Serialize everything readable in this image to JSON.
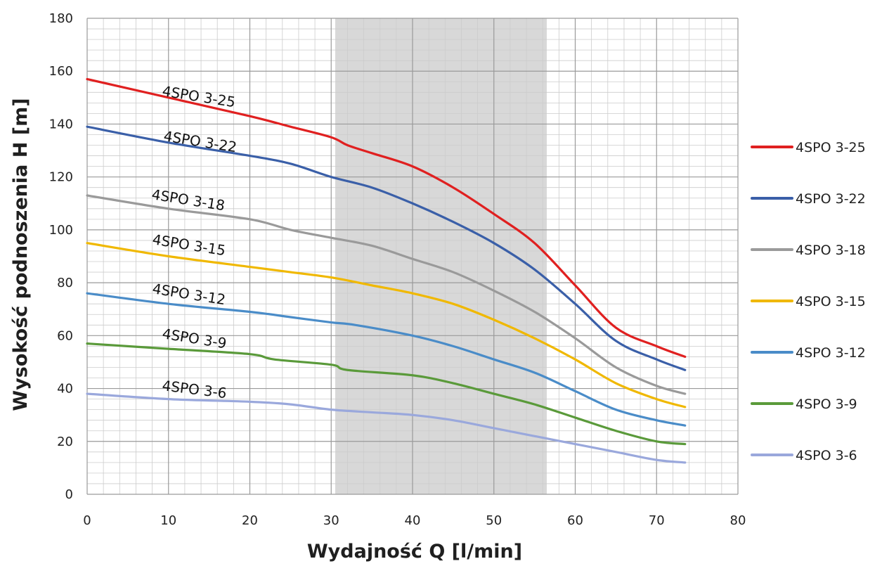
{
  "chart_data": {
    "type": "line",
    "title": "",
    "xlabel": "Wydajność Q [l/min]",
    "ylabel": "Wysokość podnoszenia H [m]",
    "xlim": [
      0,
      80
    ],
    "ylim": [
      0,
      180
    ],
    "x_ticks": [
      0,
      10,
      20,
      30,
      40,
      50,
      60,
      70,
      80
    ],
    "y_ticks": [
      0,
      20,
      40,
      60,
      80,
      100,
      120,
      140,
      160,
      180
    ],
    "x_tick_labels": [
      "0",
      "10",
      "20",
      "30",
      "40",
      "50",
      "60",
      "70",
      "80"
    ],
    "y_tick_labels": [
      "0",
      "20",
      "40",
      "60",
      "80",
      "100",
      "120",
      "140",
      "160",
      "180"
    ],
    "grid": true,
    "highlight_range_x": [
      30.5,
      56.5
    ],
    "legend_position": "right",
    "series": [
      {
        "name": "4SPO 3-25",
        "color": "#e02020",
        "x": [
          0,
          10,
          20,
          25,
          30,
          32,
          35,
          40,
          45,
          50,
          55,
          60,
          65,
          70,
          73.5
        ],
        "y": [
          157,
          150,
          143,
          139,
          135,
          132,
          129,
          124,
          116,
          106,
          95,
          79,
          63,
          56,
          52
        ]
      },
      {
        "name": "4SPO 3-22",
        "color": "#3a5fa8",
        "x": [
          0,
          10,
          20,
          25,
          30,
          35,
          40,
          45,
          50,
          55,
          60,
          65,
          70,
          73.5
        ],
        "y": [
          139,
          133,
          128,
          125,
          120,
          116,
          110,
          103,
          95,
          85,
          72,
          58,
          51,
          47
        ]
      },
      {
        "name": "4SPO 3-18",
        "color": "#9a9a9a",
        "x": [
          0,
          10,
          20,
          25,
          30,
          35,
          40,
          45,
          50,
          55,
          60,
          65,
          70,
          73.5
        ],
        "y": [
          113,
          108,
          104,
          100,
          97,
          94,
          89,
          84,
          77,
          69,
          59,
          48,
          41,
          38
        ]
      },
      {
        "name": "4SPO 3-15",
        "color": "#f0b800",
        "x": [
          0,
          10,
          20,
          25,
          30,
          35,
          40,
          45,
          50,
          55,
          60,
          65,
          70,
          73.5
        ],
        "y": [
          95,
          90,
          86,
          84,
          82,
          79,
          76,
          72,
          66,
          59,
          51,
          42,
          36,
          33
        ]
      },
      {
        "name": "4SPO 3-12",
        "color": "#4a8cc8",
        "x": [
          0,
          10,
          20,
          25,
          30,
          33,
          40,
          45,
          50,
          55,
          60,
          65,
          70,
          73.5
        ],
        "y": [
          76,
          72,
          69,
          67,
          65,
          64,
          60,
          56,
          51,
          46,
          39,
          32,
          28,
          26
        ]
      },
      {
        "name": "4SPO 3-9",
        "color": "#5a9a3a",
        "x": [
          0,
          10,
          20,
          23,
          30,
          32,
          40,
          45,
          50,
          55,
          60,
          65,
          70,
          73.5
        ],
        "y": [
          57,
          55,
          53,
          51,
          49,
          47,
          45,
          42,
          38,
          34,
          29,
          24,
          20,
          19
        ]
      },
      {
        "name": "4SPO 3-6",
        "color": "#9aa8dc",
        "x": [
          0,
          10,
          20,
          25,
          30,
          35,
          40,
          45,
          50,
          55,
          60,
          65,
          70,
          73.5
        ],
        "y": [
          38,
          36,
          35,
          34,
          32,
          31,
          30,
          28,
          25,
          22,
          19,
          16,
          13,
          12
        ]
      }
    ],
    "curve_labels": [
      {
        "text": "4SPO 3-25"
      },
      {
        "text": "4SPO 3-22"
      },
      {
        "text": "4SPO 3-18"
      },
      {
        "text": "4SPO 3-15"
      },
      {
        "text": "4SPO 3-12"
      },
      {
        "text": "4SPO 3-9"
      },
      {
        "text": "4SPO 3-6"
      }
    ]
  }
}
